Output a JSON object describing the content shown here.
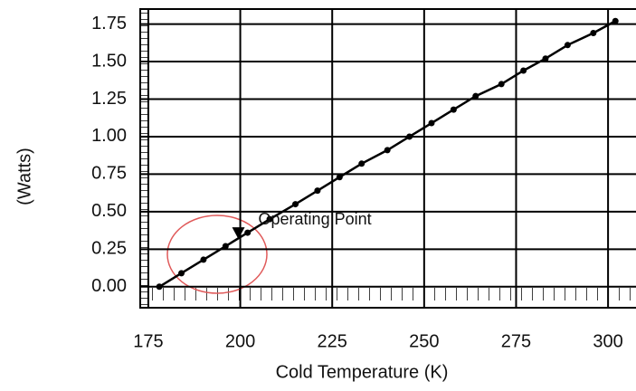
{
  "chart_data": {
    "type": "line",
    "x_label": "Cold Temperature (K)",
    "y_label": "(Watts)",
    "x": [
      178,
      184,
      190,
      196,
      202,
      208,
      215,
      221,
      227,
      233,
      240,
      246,
      252,
      258,
      264,
      271,
      277,
      283,
      289,
      296,
      302
    ],
    "series": [
      {
        "color": "#000000",
        "values": [
          0,
          0.09,
          0.18,
          0.27,
          0.36,
          0.45,
          0.55,
          0.64,
          0.73,
          0.82,
          0.91,
          1.0,
          1.09,
          1.18,
          1.27,
          1.35,
          1.44,
          1.52,
          1.61,
          1.69,
          1.77
        ]
      }
    ],
    "annotation": {
      "text": "Operating Point",
      "x": 199.5,
      "y": 0.36
    },
    "xlim": [
      172.8,
      307.6
    ],
    "ylim": [
      -0.14,
      1.85
    ],
    "xticks": [
      175,
      200,
      225,
      250,
      275,
      300
    ],
    "yticks": [
      {
        "value": 0,
        "label": "0.00"
      },
      0.25,
      {
        "value": 0.5,
        "label": "0.50"
      },
      0.75,
      {
        "value": 1,
        "label": "1.00"
      },
      1.25,
      {
        "value": 1.5,
        "label": "1.50"
      },
      1.75
    ],
    "grid": true
  }
}
